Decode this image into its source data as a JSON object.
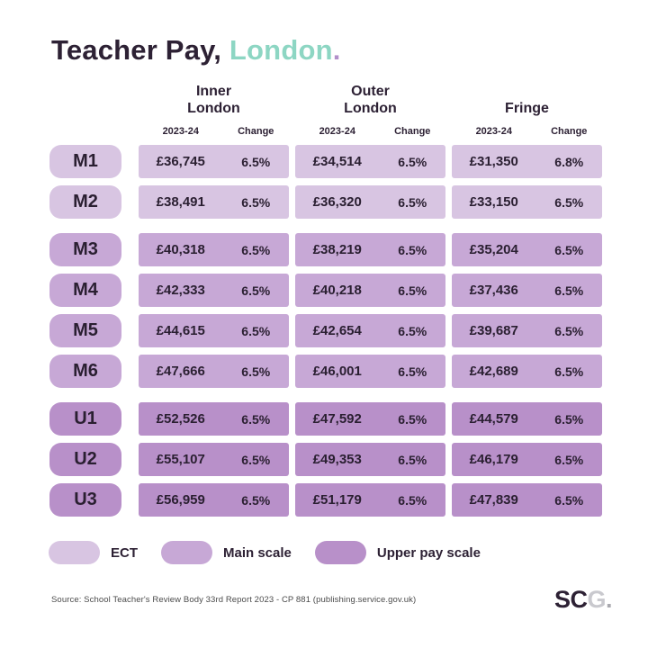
{
  "title": {
    "text_dark": "Teacher Pay,",
    "text_accent": " London",
    "text_dot": "."
  },
  "colors": {
    "title_dark": "#2d2134",
    "title_accent_teal": "#8dd6c3",
    "title_dot_purple": "#b18fc9",
    "ect": "#d8c5e2",
    "main_scale": "#c7a8d6",
    "upper_pay_scale": "#b890c9",
    "cell_text": "#2a1f31"
  },
  "chart_data": {
    "type": "table",
    "title": "Teacher Pay, London.",
    "column_groups": [
      {
        "label_line1": "Inner",
        "label_line2": "London"
      },
      {
        "label_line1": "Outer",
        "label_line2": "London"
      },
      {
        "label_line1": "Fringe",
        "label_line2": ""
      }
    ],
    "sub_columns": {
      "year": "2023-24",
      "change": "Change"
    },
    "row_groups": [
      {
        "name": "ECT",
        "rows": [
          "M1",
          "M2"
        ]
      },
      {
        "name": "Main scale",
        "rows": [
          "M3",
          "M4",
          "M5",
          "M6"
        ]
      },
      {
        "name": "Upper pay scale",
        "rows": [
          "U1",
          "U2",
          "U3"
        ]
      }
    ],
    "rows": [
      {
        "label": "M1",
        "scale": "ECT",
        "cells": [
          [
            "£36,745",
            "6.5%"
          ],
          [
            "£34,514",
            "6.5%"
          ],
          [
            "£31,350",
            "6.8%"
          ]
        ]
      },
      {
        "label": "M2",
        "scale": "ECT",
        "cells": [
          [
            "£38,491",
            "6.5%"
          ],
          [
            "£36,320",
            "6.5%"
          ],
          [
            "£33,150",
            "6.5%"
          ]
        ]
      },
      {
        "label": "M3",
        "scale": "Main scale",
        "cells": [
          [
            "£40,318",
            "6.5%"
          ],
          [
            "£38,219",
            "6.5%"
          ],
          [
            "£35,204",
            "6.5%"
          ]
        ]
      },
      {
        "label": "M4",
        "scale": "Main scale",
        "cells": [
          [
            "£42,333",
            "6.5%"
          ],
          [
            "£40,218",
            "6.5%"
          ],
          [
            "£37,436",
            "6.5%"
          ]
        ]
      },
      {
        "label": "M5",
        "scale": "Main scale",
        "cells": [
          [
            "£44,615",
            "6.5%"
          ],
          [
            "£42,654",
            "6.5%"
          ],
          [
            "£39,687",
            "6.5%"
          ]
        ]
      },
      {
        "label": "M6",
        "scale": "Main scale",
        "cells": [
          [
            "£47,666",
            "6.5%"
          ],
          [
            "£46,001",
            "6.5%"
          ],
          [
            "£42,689",
            "6.5%"
          ]
        ]
      },
      {
        "label": "U1",
        "scale": "Upper pay scale",
        "cells": [
          [
            "£52,526",
            "6.5%"
          ],
          [
            "£47,592",
            "6.5%"
          ],
          [
            "£44,579",
            "6.5%"
          ]
        ]
      },
      {
        "label": "U2",
        "scale": "Upper pay scale",
        "cells": [
          [
            "£55,107",
            "6.5%"
          ],
          [
            "£49,353",
            "6.5%"
          ],
          [
            "£46,179",
            "6.5%"
          ]
        ]
      },
      {
        "label": "U3",
        "scale": "Upper pay scale",
        "cells": [
          [
            "£56,959",
            "6.5%"
          ],
          [
            "£51,179",
            "6.5%"
          ],
          [
            "£47,839",
            "6.5%"
          ]
        ]
      }
    ],
    "legend": [
      {
        "label": "ECT",
        "color": "#d8c5e2"
      },
      {
        "label": "Main scale",
        "color": "#c7a8d6"
      },
      {
        "label": "Upper pay scale",
        "color": "#b890c9"
      }
    ]
  },
  "footer": {
    "source": "Source: School Teacher's Review Body 33rd Report 2023 - CP 881 (publishing.service.gov.uk)",
    "logo_sc": "SC",
    "logo_g": "G",
    "logo_dot": "."
  }
}
